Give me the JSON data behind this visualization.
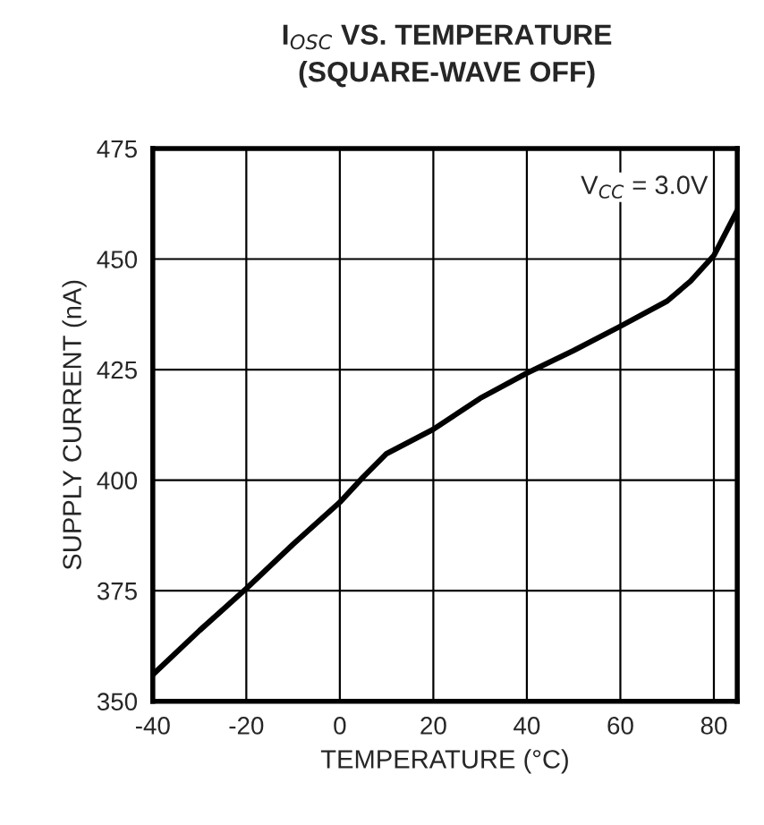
{
  "chart_data": {
    "type": "line",
    "title": "I$_{OSC}$ VS. TEMPERATURE",
    "subtitle": "(SQUARE-WAVE OFF)",
    "xlabel": "TEMPERATURE (°C)",
    "ylabel": "SUPPLY CURRENT (nA)",
    "annotations": [
      "V$_{CC}$ = 3.0V"
    ],
    "x": [
      -40,
      -30,
      -20,
      -10,
      0,
      5,
      10,
      20,
      30,
      40,
      50,
      60,
      70,
      75,
      80,
      85
    ],
    "series": [
      {
        "color": "#000000",
        "values": [
          356,
          366,
          375.5,
          385.5,
          395,
          400.7,
          406,
          411.5,
          418.5,
          424.2,
          429.3,
          434.8,
          440.5,
          445,
          450.8,
          461
        ]
      }
    ],
    "xlim": [
      -40,
      85
    ],
    "xticks": [
      -40,
      -20,
      0,
      20,
      40,
      60,
      80
    ],
    "ylim": [
      350,
      475
    ],
    "yticks": [
      350,
      375,
      400,
      425,
      450,
      475
    ],
    "grid": true,
    "line_style": "solid"
  }
}
